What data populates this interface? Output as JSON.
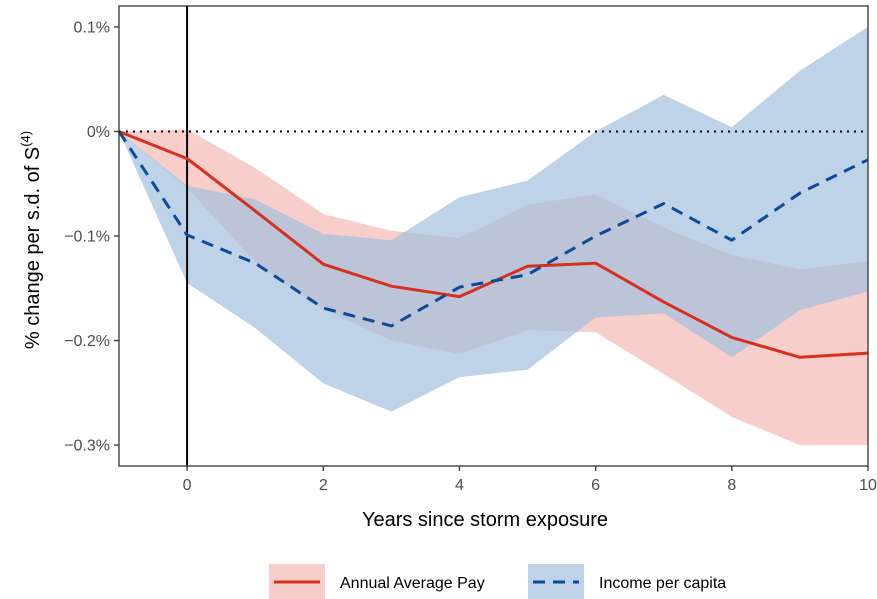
{
  "chart_data": {
    "type": "line",
    "xlabel": "Years since storm exposure",
    "ylabel_main": "% change per s.d. of S",
    "ylabel_superscript": "(4)",
    "xlim": [
      -1,
      10
    ],
    "ylim": [
      -0.32,
      0.12
    ],
    "x_ticks": [
      {
        "value": 0,
        "label": "0"
      },
      {
        "value": 2,
        "label": "2"
      },
      {
        "value": 4,
        "label": "4"
      },
      {
        "value": 6,
        "label": "6"
      },
      {
        "value": 8,
        "label": "8"
      },
      {
        "value": 10,
        "label": "10"
      }
    ],
    "y_ticks": [
      {
        "value": 0.1,
        "label": "0.1%"
      },
      {
        "value": 0.0,
        "label": "0%"
      },
      {
        "value": -0.1,
        "label": "−0.1%"
      },
      {
        "value": -0.2,
        "label": "−0.2%"
      },
      {
        "value": -0.3,
        "label": "−0.3%"
      }
    ],
    "zero_line": {
      "y": 0,
      "style": "dotted"
    },
    "event_line": {
      "x": 0
    },
    "grid": false,
    "legend_position": "bottom",
    "x": [
      -1,
      0,
      1,
      2,
      3,
      4,
      5,
      6,
      7,
      8,
      9,
      10
    ],
    "series": [
      {
        "name": "Annual Average Pay",
        "color": "#d7301f",
        "fill": "#f4b9b2",
        "line_style": "solid",
        "values": [
          0.0,
          -0.026,
          -0.076,
          -0.127,
          -0.148,
          -0.158,
          -0.129,
          -0.126,
          -0.163,
          -0.197,
          -0.216,
          -0.212
        ],
        "lower": [
          0.0,
          -0.054,
          -0.125,
          -0.17,
          -0.2,
          -0.213,
          -0.19,
          -0.192,
          -0.232,
          -0.273,
          -0.3,
          -0.3
        ],
        "upper": [
          0.0,
          0.002,
          -0.035,
          -0.079,
          -0.095,
          -0.102,
          -0.07,
          -0.06,
          -0.092,
          -0.118,
          -0.132,
          -0.124
        ]
      },
      {
        "name": "Income per capita",
        "color": "#0d4a9a",
        "fill": "#a3c0de",
        "line_style": "dashed",
        "values": [
          0.0,
          -0.099,
          -0.126,
          -0.169,
          -0.186,
          -0.149,
          -0.137,
          -0.1,
          -0.069,
          -0.104,
          -0.059,
          -0.027
        ],
        "lower": [
          0.0,
          -0.145,
          -0.188,
          -0.241,
          -0.268,
          -0.235,
          -0.228,
          -0.178,
          -0.174,
          -0.216,
          -0.171,
          -0.153
        ],
        "upper": [
          0.0,
          -0.052,
          -0.065,
          -0.098,
          -0.104,
          -0.063,
          -0.047,
          0.0,
          0.035,
          0.004,
          0.058,
          0.1
        ]
      }
    ]
  }
}
